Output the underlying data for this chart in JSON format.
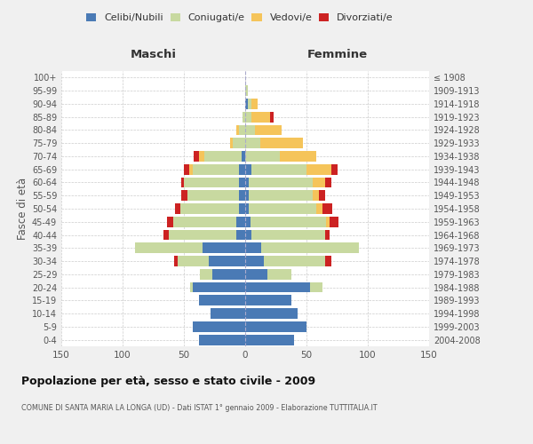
{
  "age_groups": [
    "0-4",
    "5-9",
    "10-14",
    "15-19",
    "20-24",
    "25-29",
    "30-34",
    "35-39",
    "40-44",
    "45-49",
    "50-54",
    "55-59",
    "60-64",
    "65-69",
    "70-74",
    "75-79",
    "80-84",
    "85-89",
    "90-94",
    "95-99",
    "100+"
  ],
  "birth_years": [
    "2004-2008",
    "1999-2003",
    "1994-1998",
    "1989-1993",
    "1984-1988",
    "1979-1983",
    "1974-1978",
    "1969-1973",
    "1964-1968",
    "1959-1963",
    "1954-1958",
    "1949-1953",
    "1944-1948",
    "1939-1943",
    "1934-1938",
    "1929-1933",
    "1924-1928",
    "1919-1923",
    "1914-1918",
    "1909-1913",
    "≤ 1908"
  ],
  "male": {
    "celibi": [
      38,
      43,
      28,
      38,
      43,
      27,
      30,
      35,
      7,
      7,
      5,
      5,
      5,
      5,
      3,
      0,
      0,
      0,
      0,
      0,
      0
    ],
    "coniugati": [
      0,
      0,
      0,
      0,
      2,
      10,
      25,
      55,
      55,
      52,
      48,
      42,
      45,
      38,
      30,
      10,
      5,
      2,
      0,
      0,
      0
    ],
    "vedovi": [
      0,
      0,
      0,
      0,
      0,
      0,
      0,
      0,
      0,
      0,
      0,
      0,
      0,
      3,
      5,
      2,
      2,
      0,
      0,
      0,
      0
    ],
    "divorziati": [
      0,
      0,
      0,
      0,
      0,
      0,
      3,
      0,
      5,
      5,
      4,
      5,
      2,
      4,
      4,
      0,
      0,
      0,
      0,
      0,
      0
    ]
  },
  "female": {
    "nubili": [
      40,
      50,
      43,
      38,
      53,
      18,
      15,
      13,
      5,
      4,
      3,
      3,
      3,
      5,
      0,
      0,
      0,
      0,
      2,
      0,
      0
    ],
    "coniugate": [
      0,
      0,
      0,
      0,
      10,
      20,
      50,
      80,
      60,
      62,
      55,
      52,
      52,
      45,
      28,
      12,
      8,
      5,
      3,
      2,
      0
    ],
    "vedove": [
      0,
      0,
      0,
      0,
      0,
      0,
      0,
      0,
      0,
      3,
      5,
      5,
      10,
      20,
      30,
      35,
      22,
      15,
      5,
      0,
      0
    ],
    "divorziate": [
      0,
      0,
      0,
      0,
      0,
      0,
      5,
      0,
      4,
      7,
      8,
      5,
      5,
      5,
      0,
      0,
      0,
      3,
      0,
      0,
      0
    ]
  },
  "colors": {
    "celibi": "#4a7ab5",
    "coniugati": "#c8d9a0",
    "vedovi": "#f5c45a",
    "divorziati": "#cc2222"
  },
  "title": "Popolazione per età, sesso e stato civile - 2009",
  "subtitle": "COMUNE DI SANTA MARIA LA LONGA (UD) - Dati ISTAT 1° gennaio 2009 - Elaborazione TUTTITALIA.IT",
  "xlabel_left": "Maschi",
  "xlabel_right": "Femmine",
  "ylabel_left": "Fasce di età",
  "xlim": 150,
  "bg_color": "#f0f0f0",
  "plot_bg": "#ffffff"
}
